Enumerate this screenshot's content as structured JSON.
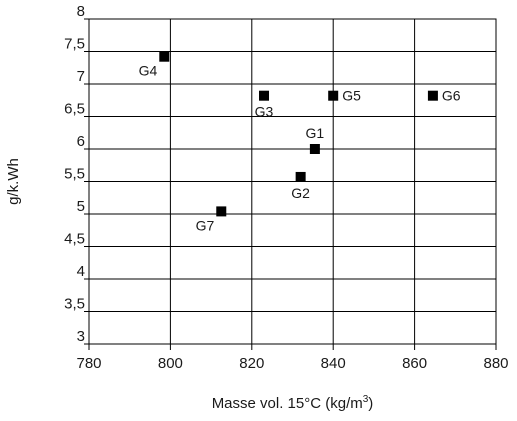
{
  "chart_data": {
    "type": "scatter",
    "xlabel": "Masse vol. 15°C (kg/m",
    "xlabel_sup": "3",
    "xlabel_end": ")",
    "ylabel": "g/k.Wh",
    "xlim": [
      780,
      880
    ],
    "ylim": [
      3,
      8
    ],
    "x_ticks": [
      780,
      800,
      820,
      840,
      860,
      880
    ],
    "x_tick_labels": [
      "780",
      "800",
      "820",
      "840",
      "860",
      "880"
    ],
    "y_ticks": [
      3,
      3.5,
      4,
      4.5,
      5,
      5.5,
      6,
      6.5,
      7,
      7.5,
      8
    ],
    "y_tick_labels": [
      "3",
      "3,5",
      "4",
      "4,5",
      "5",
      "5,5",
      "6",
      "6,5",
      "7",
      "7,5",
      "8"
    ],
    "grid": true,
    "marker_color": "#000000",
    "points": [
      {
        "label": "G1",
        "x": 835.5,
        "y": 6.0,
        "label_pos": "above"
      },
      {
        "label": "G2",
        "x": 832,
        "y": 5.57,
        "label_pos": "below"
      },
      {
        "label": "G3",
        "x": 823,
        "y": 6.82,
        "label_pos": "below"
      },
      {
        "label": "G4",
        "x": 798.5,
        "y": 7.42,
        "label_pos": "below-left"
      },
      {
        "label": "G5",
        "x": 840,
        "y": 6.82,
        "label_pos": "right"
      },
      {
        "label": "G6",
        "x": 864.5,
        "y": 6.82,
        "label_pos": "right"
      },
      {
        "label": "G7",
        "x": 812.5,
        "y": 5.04,
        "label_pos": "below-left"
      }
    ]
  }
}
